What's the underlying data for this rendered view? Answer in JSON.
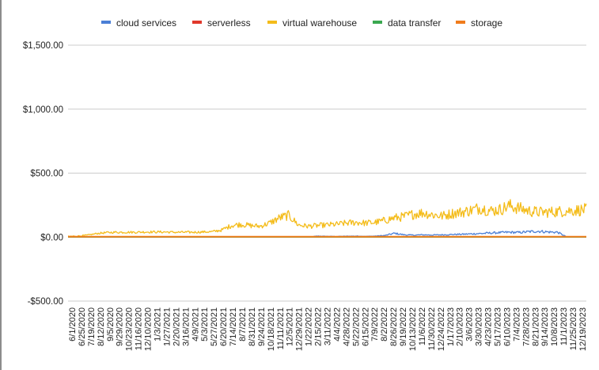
{
  "chart_data": {
    "type": "line",
    "title": "",
    "xlabel": "",
    "ylabel": "",
    "ylim": [
      -500,
      1500
    ],
    "y_ticks": [
      {
        "value": 1500,
        "label": "$1,500.00"
      },
      {
        "value": 1000,
        "label": "$1,000.00"
      },
      {
        "value": 500,
        "label": "$500.00"
      },
      {
        "value": 0,
        "label": "$0.00"
      },
      {
        "value": -500,
        "label": "-$500.00"
      }
    ],
    "x_tick_labels": [
      "6/1/2020",
      "6/25/2020",
      "7/19/2020",
      "8/12/2020",
      "9/5/2020",
      "9/29/2020",
      "10/23/2020",
      "11/16/2020",
      "12/10/2020",
      "1/3/2021",
      "1/27/2021",
      "2/20/2021",
      "3/16/2021",
      "4/9/2021",
      "5/3/2021",
      "5/27/2021",
      "6/20/2021",
      "7/14/2021",
      "8/7/2021",
      "8/31/2021",
      "9/24/2021",
      "10/18/2021",
      "11/11/2021",
      "12/5/2021",
      "12/29/2021",
      "1/22/2022",
      "2/15/2022",
      "3/11/2022",
      "4/4/2022",
      "4/28/2022",
      "5/22/2022",
      "6/15/2022",
      "7/9/2022",
      "8/2/2022",
      "8/26/2022",
      "9/19/2022",
      "10/13/2022",
      "11/6/2022",
      "11/30/2022",
      "12/24/2022",
      "1/17/2023",
      "2/10/2023",
      "3/6/2023",
      "3/30/2023",
      "4/23/2023",
      "5/17/2023",
      "6/10/2023",
      "7/4/2023",
      "7/28/2023",
      "8/21/2023",
      "9/14/2023",
      "10/8/2023",
      "11/1/2023",
      "11/25/2023",
      "12/19/2023"
    ],
    "grid": true,
    "legend_position": "top",
    "series": [
      {
        "name": "cloud services",
        "color": "#4a7fd6",
        "values": [
          0,
          0,
          0,
          0,
          0,
          0,
          0,
          0,
          0,
          0,
          0,
          0,
          0,
          0,
          0,
          0,
          0,
          0,
          0,
          0,
          0,
          0,
          0,
          0,
          0,
          0,
          8,
          6,
          5,
          7,
          8,
          6,
          8,
          12,
          30,
          18,
          15,
          18,
          16,
          18,
          20,
          22,
          25,
          28,
          32,
          35,
          38,
          36,
          42,
          46,
          40,
          38,
          0,
          0,
          0
        ]
      },
      {
        "name": "serverless",
        "color": "#e0382b",
        "values": [
          0,
          0,
          0,
          0,
          0,
          0,
          0,
          0,
          0,
          0,
          0,
          0,
          0,
          0,
          0,
          0,
          0,
          0,
          0,
          0,
          0,
          0,
          0,
          0,
          0,
          0,
          0,
          0,
          0,
          0,
          0,
          0,
          0,
          0,
          0,
          0,
          0,
          0,
          0,
          0,
          0,
          0,
          0,
          0,
          0,
          0,
          0,
          0,
          0,
          0,
          0,
          0,
          0,
          0,
          0
        ]
      },
      {
        "name": "virtual warehouse",
        "color": "#f4bc1a",
        "values": [
          5,
          8,
          15,
          28,
          35,
          38,
          38,
          38,
          40,
          40,
          40,
          38,
          38,
          38,
          40,
          42,
          55,
          90,
          100,
          90,
          85,
          110,
          150,
          170,
          95,
          85,
          90,
          95,
          100,
          110,
          115,
          110,
          115,
          130,
          150,
          160,
          180,
          190,
          175,
          165,
          185,
          195,
          210,
          230,
          205,
          215,
          245,
          225,
          205,
          195,
          195,
          200,
          205,
          210,
          215
        ]
      },
      {
        "name": "data transfer",
        "color": "#3aa84f",
        "values": [
          0,
          0,
          0,
          0,
          0,
          0,
          0,
          0,
          0,
          0,
          0,
          0,
          0,
          0,
          0,
          0,
          0,
          0,
          0,
          0,
          0,
          0,
          0,
          0,
          0,
          0,
          0,
          0,
          0,
          0,
          0,
          0,
          0,
          0,
          0,
          0,
          0,
          0,
          0,
          0,
          0,
          0,
          0,
          0,
          0,
          0,
          0,
          0,
          0,
          0,
          0,
          0,
          0,
          0,
          0
        ]
      },
      {
        "name": "storage",
        "color": "#f07c1c",
        "values": [
          3,
          3,
          3,
          3,
          3,
          3,
          3,
          3,
          3,
          3,
          3,
          3,
          3,
          3,
          3,
          3,
          3,
          3,
          3,
          3,
          3,
          3,
          3,
          3,
          3,
          3,
          3,
          3,
          3,
          3,
          3,
          3,
          3,
          3,
          3,
          3,
          3,
          3,
          3,
          3,
          3,
          3,
          3,
          3,
          3,
          3,
          3,
          3,
          3,
          3,
          3,
          3,
          3,
          3,
          3
        ]
      }
    ]
  }
}
